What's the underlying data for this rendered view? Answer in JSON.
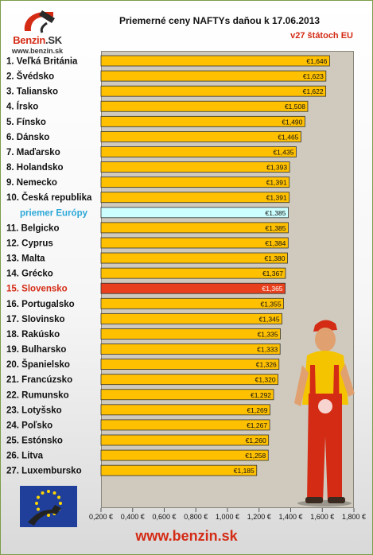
{
  "logo": {
    "name": "Benzin",
    "suffix": "SK",
    "url": "www.benzin.sk"
  },
  "chart_data": {
    "type": "bar",
    "orientation": "horizontal",
    "title": "Priemerné ceny NAFTYs daňou k 17.06.2013",
    "subtitle": "v27 štátoch EU",
    "categories": [
      "1. Veľká Británia",
      "2. Švédsko",
      "3. Taliansko",
      "4. Írsko",
      "5. Fínsko",
      "6. Dánsko",
      "7. Maďarsko",
      "8. Holandsko",
      "9. Nemecko",
      "10. Česká republika",
      "priemer Európy",
      "11. Belgicko",
      "12. Cyprus",
      "13. Malta",
      "14. Grécko",
      "15. Slovensko",
      "16. Portugalsko",
      "17. Slovinsko",
      "18. Rakúsko",
      "19. Bulharsko",
      "20. Španielsko",
      "21. Francúzsko",
      "22. Rumunsko",
      "23. Lotyšsko",
      "24. Poľsko",
      "25. Estónsko",
      "26. Litva",
      "27. Luxembursko"
    ],
    "values": [
      1.646,
      1.623,
      1.622,
      1.508,
      1.49,
      1.465,
      1.435,
      1.393,
      1.391,
      1.391,
      1.385,
      1.385,
      1.384,
      1.38,
      1.367,
      1.365,
      1.355,
      1.345,
      1.335,
      1.333,
      1.326,
      1.32,
      1.292,
      1.269,
      1.267,
      1.26,
      1.258,
      1.185
    ],
    "data_labels": [
      "€1,646",
      "€1,623",
      "€1,622",
      "€1,508",
      "€1,490",
      "€1,465",
      "€1,435",
      "€1,393",
      "€1,391",
      "€1,391",
      "€1,385",
      "€1,385",
      "€1,384",
      "€1,380",
      "€1,367",
      "€1,365",
      "€1,355",
      "€1,345",
      "€1,335",
      "€1,333",
      "€1,326",
      "€1,320",
      "€1,292",
      "€1,269",
      "€1,267",
      "€1,260",
      "€1,258",
      "€1,185"
    ],
    "highlights": {
      "10": "average",
      "15": "slovakia"
    },
    "xlim": [
      0.2,
      1.8
    ],
    "ticks": [
      0.2,
      0.4,
      0.6,
      0.8,
      1.0,
      1.2,
      1.4,
      1.6,
      1.8
    ],
    "tick_labels": [
      "0,200 €",
      "0,400 €",
      "0,600 €",
      "0,800 €",
      "1,000 €",
      "1,200 €",
      "1,400 €",
      "1,600 €",
      "1,800 €"
    ],
    "colors": {
      "bar": "#ffc000",
      "bar_average": "#ccffff",
      "bar_slovakia": "#e8401c",
      "label_default": "#111111",
      "label_average": "#2aa8d8",
      "label_slovakia": "#d42b15",
      "plot_background": "#cfcabd"
    }
  },
  "footer": {
    "url": "www.benzin.sk"
  }
}
